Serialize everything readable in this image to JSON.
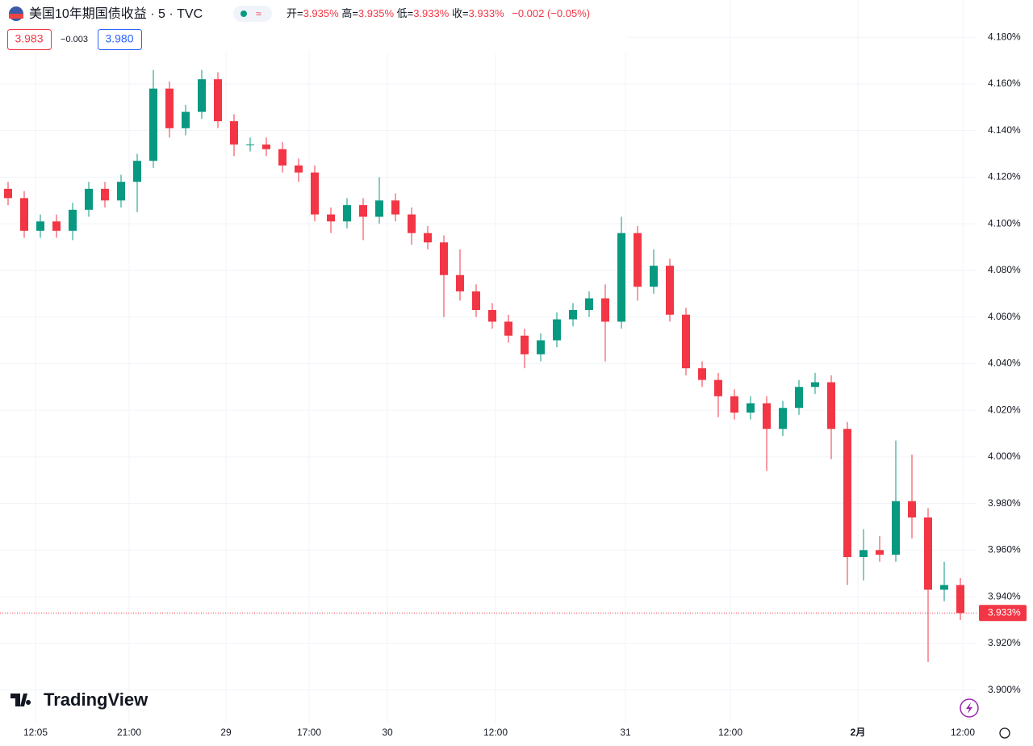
{
  "chart_data": {
    "type": "candlestick",
    "title": "美国10年期国债收益 · 5 · TVC",
    "header": {
      "open_label": "开=",
      "open": "3.935%",
      "high_label": "高=",
      "high": "3.935%",
      "low_label": "低=",
      "low": "3.933%",
      "close_label": "收=",
      "close": "3.933%",
      "change": "−0.002 (−0.05%)"
    },
    "quote": {
      "sell": "3.983",
      "spread": "−0.003",
      "buy": "3.980"
    },
    "logo": "TradingView",
    "up_color": "#089981",
    "down_color": "#f23645",
    "grid": true,
    "open": [
      4.115,
      4.111,
      4.097,
      4.101,
      4.097,
      4.106,
      4.115,
      4.11,
      4.118,
      4.127,
      4.158,
      4.141,
      4.148,
      4.162,
      4.144,
      4.134,
      4.134,
      4.132,
      4.125,
      4.122,
      4.104,
      4.101,
      4.108,
      4.103,
      4.11,
      4.104,
      4.096,
      4.092,
      4.078,
      4.071,
      4.063,
      4.058,
      4.052,
      4.044,
      4.05,
      4.059,
      4.063,
      4.068,
      4.058,
      4.096,
      4.073,
      4.082,
      4.061,
      4.038,
      4.033,
      4.026,
      4.019,
      4.023,
      4.012,
      4.021,
      4.03,
      4.032,
      4.012,
      3.957,
      3.96,
      3.958,
      3.981,
      3.974,
      3.943,
      3.945
    ],
    "high": [
      4.118,
      4.114,
      4.104,
      4.104,
      4.109,
      4.118,
      4.118,
      4.121,
      4.13,
      4.166,
      4.161,
      4.151,
      4.166,
      4.165,
      4.147,
      4.137,
      4.137,
      4.135,
      4.128,
      4.125,
      4.107,
      4.111,
      4.111,
      4.12,
      4.113,
      4.107,
      4.099,
      4.095,
      4.089,
      4.074,
      4.066,
      4.061,
      4.055,
      4.053,
      4.062,
      4.066,
      4.071,
      4.074,
      4.103,
      4.099,
      4.089,
      4.085,
      4.064,
      4.041,
      4.036,
      4.029,
      4.026,
      4.026,
      4.024,
      4.033,
      4.036,
      4.035,
      4.015,
      3.969,
      3.966,
      4.007,
      4.001,
      3.978,
      3.955,
      3.948
    ],
    "low": [
      4.108,
      4.094,
      4.094,
      4.094,
      4.093,
      4.103,
      4.107,
      4.107,
      4.105,
      4.124,
      4.137,
      4.138,
      4.145,
      4.141,
      4.129,
      4.131,
      4.129,
      4.122,
      4.118,
      4.101,
      4.096,
      4.098,
      4.093,
      4.1,
      4.101,
      4.091,
      4.089,
      4.06,
      4.067,
      4.06,
      4.055,
      4.049,
      4.038,
      4.041,
      4.047,
      4.056,
      4.06,
      4.041,
      4.055,
      4.067,
      4.07,
      4.058,
      4.035,
      4.03,
      4.017,
      4.016,
      4.016,
      3.994,
      4.009,
      4.018,
      4.027,
      3.999,
      3.945,
      3.947,
      3.955,
      3.955,
      3.965,
      3.912,
      3.938,
      3.93
    ],
    "close": [
      4.111,
      4.097,
      4.101,
      4.097,
      4.106,
      4.115,
      4.11,
      4.118,
      4.127,
      4.158,
      4.141,
      4.148,
      4.162,
      4.144,
      4.134,
      4.134,
      4.132,
      4.125,
      4.122,
      4.104,
      4.101,
      4.108,
      4.103,
      4.11,
      4.104,
      4.096,
      4.092,
      4.078,
      4.071,
      4.063,
      4.058,
      4.052,
      4.044,
      4.05,
      4.059,
      4.063,
      4.068,
      4.058,
      4.096,
      4.073,
      4.082,
      4.061,
      4.038,
      4.033,
      4.026,
      4.019,
      4.023,
      4.012,
      4.021,
      4.03,
      4.032,
      4.012,
      3.957,
      3.96,
      3.958,
      3.981,
      3.974,
      3.943,
      3.945,
      3.933
    ],
    "last_price": {
      "value": 3.933,
      "label": "3.933%"
    },
    "xlim": [
      -0.5,
      60
    ],
    "xticks": [
      {
        "value": 1.7,
        "label": "12:05"
      },
      {
        "value": 7.5,
        "label": "21:00"
      },
      {
        "value": 13.5,
        "label": "29"
      },
      {
        "value": 18.65,
        "label": "17:00"
      },
      {
        "value": 23.5,
        "label": "30"
      },
      {
        "value": 30.2,
        "label": "12:00"
      },
      {
        "value": 38.25,
        "label": "31"
      },
      {
        "value": 44.75,
        "label": "12:00"
      },
      {
        "value": 52.65,
        "label": "2月"
      },
      {
        "value": 59.15,
        "label": "12:00"
      }
    ],
    "ylim": [
      3.886,
      4.196
    ],
    "yticks": [
      {
        "value": 3.9,
        "label": "3.900%"
      },
      {
        "value": 3.92,
        "label": "3.920%"
      },
      {
        "value": 3.94,
        "label": "3.940%"
      },
      {
        "value": 3.96,
        "label": "3.960%"
      },
      {
        "value": 3.98,
        "label": "3.980%"
      },
      {
        "value": 4.0,
        "label": "4.000%"
      },
      {
        "value": 4.02,
        "label": "4.020%"
      },
      {
        "value": 4.04,
        "label": "4.040%"
      },
      {
        "value": 4.06,
        "label": "4.060%"
      },
      {
        "value": 4.08,
        "label": "4.080%"
      },
      {
        "value": 4.1,
        "label": "4.100%"
      },
      {
        "value": 4.12,
        "label": "4.120%"
      },
      {
        "value": 4.14,
        "label": "4.140%"
      },
      {
        "value": 4.16,
        "label": "4.160%"
      },
      {
        "value": 4.18,
        "label": "4.180%"
      }
    ]
  }
}
